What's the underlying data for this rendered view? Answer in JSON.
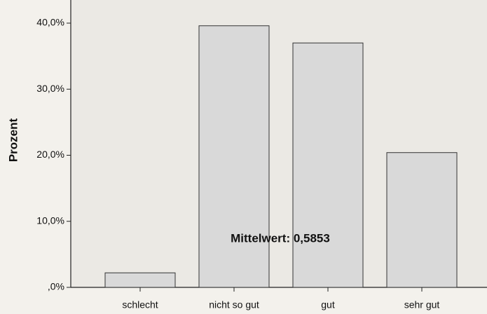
{
  "chart_data": {
    "type": "bar",
    "categories": [
      "schlecht",
      "nicht so gut",
      "gut",
      "sehr gut"
    ],
    "values": [
      2.2,
      39.6,
      37.0,
      20.4
    ],
    "color": "#d9d9d9",
    "y_label": "Prozent",
    "annotation": "Mittelwert: 0,5853",
    "ylim": [
      0,
      43.5
    ],
    "yticks": [
      {
        "value": 0,
        "label": ",0%"
      },
      {
        "value": 10,
        "label": "10,0%"
      },
      {
        "value": 20,
        "label": "20,0%"
      },
      {
        "value": 30,
        "label": "30,0%"
      },
      {
        "value": 40,
        "label": "40,0%"
      }
    ],
    "grid": false
  }
}
